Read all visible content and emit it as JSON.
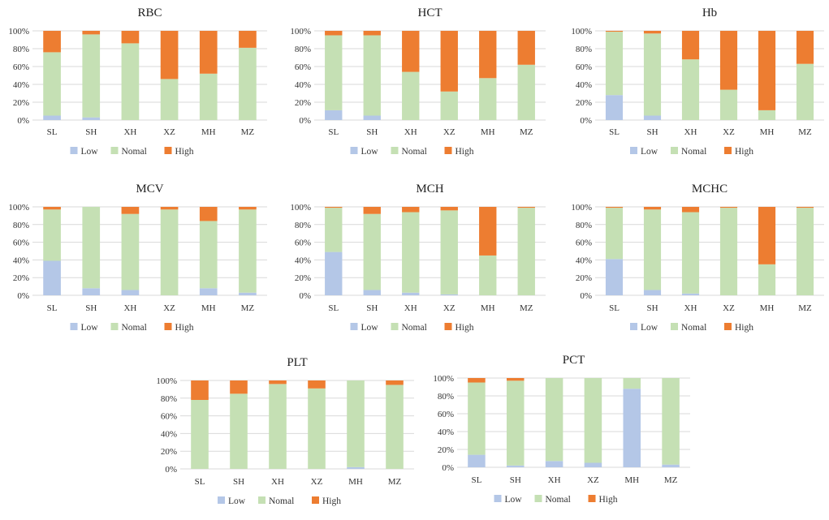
{
  "colors": {
    "low": "#b4c7e7",
    "normal": "#c5e0b4",
    "high": "#ed7d31",
    "grid": "#d9d9d9",
    "text": "#333333"
  },
  "legend": [
    "Low",
    "Nomal",
    "High"
  ],
  "chart_data": [
    {
      "type": "bar",
      "stacked": "percent",
      "title": "RBC",
      "categories": [
        "SL",
        "SH",
        "XH",
        "XZ",
        "MH",
        "MZ"
      ],
      "yticks": [
        "0%",
        "20%",
        "40%",
        "60%",
        "80%",
        "100%"
      ],
      "series": [
        {
          "name": "Low",
          "values": [
            5,
            3,
            0,
            0,
            0,
            0
          ]
        },
        {
          "name": "Nomal",
          "values": [
            71,
            93,
            86,
            46,
            52,
            81
          ]
        },
        {
          "name": "High",
          "values": [
            24,
            4,
            14,
            54,
            48,
            19
          ]
        }
      ]
    },
    {
      "type": "bar",
      "stacked": "percent",
      "title": "HCT",
      "categories": [
        "SL",
        "SH",
        "XH",
        "XZ",
        "MH",
        "MZ"
      ],
      "yticks": [
        "0%",
        "20%",
        "40%",
        "60%",
        "80%",
        "100%"
      ],
      "series": [
        {
          "name": "Low",
          "values": [
            11,
            5,
            0,
            0,
            0,
            0
          ]
        },
        {
          "name": "Nomal",
          "values": [
            84,
            90,
            54,
            32,
            47,
            62
          ]
        },
        {
          "name": "High",
          "values": [
            5,
            5,
            46,
            68,
            53,
            38
          ]
        }
      ]
    },
    {
      "type": "bar",
      "stacked": "percent",
      "title": "Hb",
      "categories": [
        "SL",
        "SH",
        "XH",
        "XZ",
        "MH",
        "MZ"
      ],
      "yticks": [
        "0%",
        "20%",
        "40%",
        "60%",
        "80%",
        "100%"
      ],
      "series": [
        {
          "name": "Low",
          "values": [
            28,
            5,
            0,
            0,
            0,
            0
          ]
        },
        {
          "name": "Nomal",
          "values": [
            71,
            92,
            68,
            34,
            11,
            63
          ]
        },
        {
          "name": "High",
          "values": [
            1,
            3,
            32,
            66,
            89,
            37
          ]
        }
      ]
    },
    {
      "type": "bar",
      "stacked": "percent",
      "title": "MCV",
      "categories": [
        "SL",
        "SH",
        "XH",
        "XZ",
        "MH",
        "MZ"
      ],
      "yticks": [
        "0%",
        "20%",
        "40%",
        "60%",
        "80%",
        "100%"
      ],
      "series": [
        {
          "name": "Low",
          "values": [
            39,
            8,
            6,
            0,
            8,
            3
          ]
        },
        {
          "name": "Nomal",
          "values": [
            58,
            92,
            86,
            97,
            76,
            94
          ]
        },
        {
          "name": "High",
          "values": [
            3,
            0,
            8,
            3,
            16,
            3
          ]
        }
      ]
    },
    {
      "type": "bar",
      "stacked": "percent",
      "title": "MCH",
      "categories": [
        "SL",
        "SH",
        "XH",
        "XZ",
        "MH",
        "MZ"
      ],
      "yticks": [
        "0%",
        "20%",
        "40%",
        "60%",
        "80%",
        "100%"
      ],
      "series": [
        {
          "name": "Low",
          "values": [
            49,
            6,
            3,
            1,
            0,
            0
          ]
        },
        {
          "name": "Nomal",
          "values": [
            50,
            86,
            91,
            95,
            45,
            99
          ]
        },
        {
          "name": "High",
          "values": [
            1,
            8,
            6,
            4,
            55,
            1
          ]
        }
      ]
    },
    {
      "type": "bar",
      "stacked": "percent",
      "title": "MCHC",
      "categories": [
        "SL",
        "SH",
        "XH",
        "XZ",
        "MH",
        "MZ"
      ],
      "yticks": [
        "0%",
        "20%",
        "40%",
        "60%",
        "80%",
        "100%"
      ],
      "series": [
        {
          "name": "Low",
          "values": [
            41,
            6,
            2,
            0,
            0,
            0
          ]
        },
        {
          "name": "Nomal",
          "values": [
            58,
            91,
            92,
            99,
            35,
            99
          ]
        },
        {
          "name": "High",
          "values": [
            1,
            3,
            6,
            1,
            65,
            1
          ]
        }
      ]
    },
    {
      "type": "bar",
      "stacked": "percent",
      "title": "PLT",
      "categories": [
        "SL",
        "SH",
        "XH",
        "XZ",
        "MH",
        "MZ"
      ],
      "yticks": [
        "0%",
        "20%",
        "40%",
        "60%",
        "80%",
        "100%"
      ],
      "series": [
        {
          "name": "Low",
          "values": [
            0,
            0,
            0,
            0,
            2,
            0
          ]
        },
        {
          "name": "Nomal",
          "values": [
            78,
            85,
            96,
            91,
            98,
            95
          ]
        },
        {
          "name": "High",
          "values": [
            22,
            15,
            4,
            9,
            0,
            5
          ]
        }
      ]
    },
    {
      "type": "bar",
      "stacked": "percent",
      "title": "PCT",
      "categories": [
        "SL",
        "SH",
        "XH",
        "XZ",
        "MH",
        "MZ"
      ],
      "yticks": [
        "0%",
        "20%",
        "40%",
        "60%",
        "80%",
        "100%"
      ],
      "series": [
        {
          "name": "Low",
          "values": [
            14,
            2,
            7,
            5,
            88,
            3
          ]
        },
        {
          "name": "Nomal",
          "values": [
            81,
            95,
            93,
            95,
            12,
            97
          ]
        },
        {
          "name": "High",
          "values": [
            5,
            3,
            0,
            0,
            0,
            0
          ]
        }
      ]
    }
  ]
}
